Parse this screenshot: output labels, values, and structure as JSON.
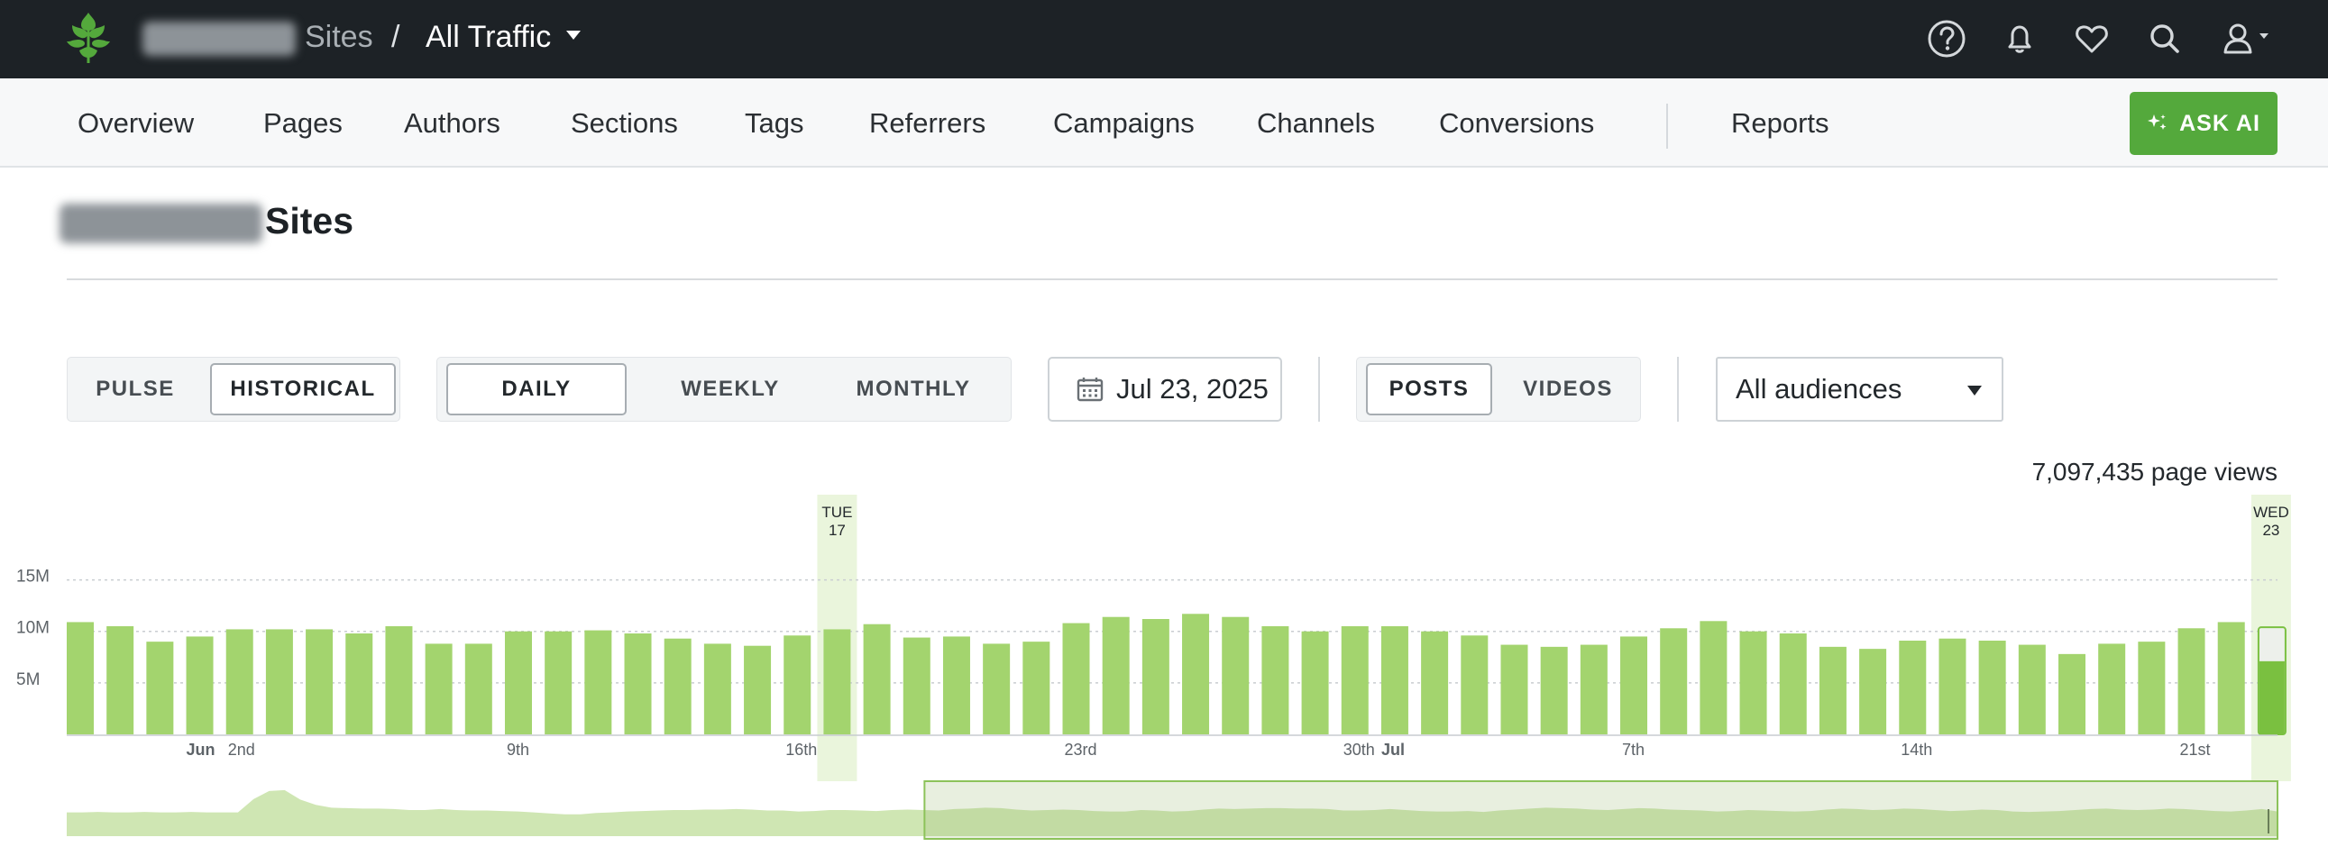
{
  "topbar": {
    "crumb_sites": "Sites",
    "crumb_separator": "/",
    "crumb_traffic": "All Traffic",
    "icons": [
      "help-icon",
      "bell-icon",
      "heart-icon",
      "search-icon",
      "user-icon"
    ]
  },
  "nav": {
    "items": [
      "Overview",
      "Pages",
      "Authors",
      "Sections",
      "Tags",
      "Referrers",
      "Campaigns",
      "Channels",
      "Conversions"
    ],
    "reports": "Reports",
    "ask_ai": "ASK AI"
  },
  "page": {
    "title": "Sites"
  },
  "controls": {
    "mode": {
      "options": [
        "PULSE",
        "HISTORICAL"
      ],
      "selected": "HISTORICAL"
    },
    "interval": {
      "options": [
        "DAILY",
        "WEEKLY",
        "MONTHLY"
      ],
      "selected": "DAILY"
    },
    "date": "Jul 23, 2025",
    "content": {
      "options": [
        "POSTS",
        "VIDEOS"
      ],
      "selected": "POSTS"
    },
    "audience": "All audiences"
  },
  "summary": {
    "page_views": "7,097,435 page views"
  },
  "colors": {
    "bar": "#a3d46e",
    "bar_current": "#7ac040",
    "highlight": "#eaf5dc",
    "accent": "#54a93c"
  },
  "chart_data": {
    "type": "bar",
    "yticks": [
      "15M",
      "10M",
      "5M"
    ],
    "ylim": [
      0,
      17500000
    ],
    "start_date": "2025-05-29",
    "end_date": "2025-07-23",
    "values": [
      10900000,
      10500000,
      9000000,
      9500000,
      10200000,
      10200000,
      10200000,
      9800000,
      10500000,
      8800000,
      8800000,
      10000000,
      10000000,
      10100000,
      9800000,
      9300000,
      8800000,
      8600000,
      9600000,
      10200000,
      10700000,
      9400000,
      9500000,
      8800000,
      9000000,
      10800000,
      11400000,
      11200000,
      11700000,
      11400000,
      10500000,
      10000000,
      10500000,
      10500000,
      10000000,
      9600000,
      8700000,
      8500000,
      8700000,
      9500000,
      10300000,
      11000000,
      10000000,
      9800000,
      8500000,
      8300000,
      9100000,
      9300000,
      9100000,
      8700000,
      7800000,
      8800000,
      9000000,
      10300000,
      10900000,
      7100000
    ],
    "current_day_partial": true,
    "current_day_projected": 10400000,
    "x_tick_labels": [
      {
        "label": "Jun",
        "index": 3,
        "month": true
      },
      {
        "label": "2nd",
        "index": 4
      },
      {
        "label": "9th",
        "index": 11
      },
      {
        "label": "16th",
        "index": 18
      },
      {
        "label": "23rd",
        "index": 25
      },
      {
        "label": "30th",
        "index": 32
      },
      {
        "label": "Jul",
        "index": 33,
        "month": true
      },
      {
        "label": "7th",
        "index": 39
      },
      {
        "label": "14th",
        "index": 46
      },
      {
        "label": "21st",
        "index": 53
      }
    ],
    "highlights": [
      {
        "day": "TUE",
        "date": "17",
        "index": 19
      },
      {
        "day": "WED",
        "date": "23",
        "index": 55
      }
    ],
    "overview_values": [
      5.0,
      5.0,
      5.1,
      5.0,
      5.0,
      5.1,
      5.0,
      5.0,
      5.1,
      5.0,
      5.0,
      5.0,
      7.8,
      9.5,
      9.7,
      7.7,
      6.6,
      6.0,
      5.9,
      5.8,
      5.8,
      5.7,
      5.5,
      5.5,
      5.7,
      5.5,
      5.4,
      5.4,
      5.3,
      5.2,
      5.0,
      4.8,
      4.6,
      4.6,
      4.9,
      5.0,
      5.2,
      5.3,
      5.4,
      5.5,
      5.5,
      5.6,
      5.6,
      5.7,
      5.6,
      5.4,
      5.4,
      5.2,
      5.3,
      5.5,
      5.5,
      5.4,
      5.3,
      5.5,
      5.6,
      5.5,
      5.4,
      5.7,
      5.8,
      6.0,
      5.9,
      5.6,
      5.4,
      5.5,
      5.6,
      5.5,
      5.3,
      5.2,
      5.2,
      5.5,
      5.4,
      5.2,
      5.3,
      5.6,
      5.8,
      5.7,
      5.8,
      5.9,
      5.9,
      5.8,
      5.8,
      5.7,
      5.4,
      5.4,
      5.5,
      5.7,
      5.5,
      5.3,
      5.2,
      5.2,
      5.3,
      5.1,
      5.4,
      5.6,
      5.8,
      6.0,
      5.9,
      5.8,
      5.6,
      5.5,
      5.7,
      5.9,
      5.8,
      5.6,
      5.5,
      5.4,
      5.2,
      5.3,
      5.5,
      5.4,
      5.3,
      5.2,
      5.3,
      5.6,
      5.8,
      5.7,
      5.5,
      5.6,
      5.8,
      5.7,
      5.5,
      5.3,
      5.4,
      5.6,
      5.5,
      5.2,
      5.1,
      5.2,
      5.3,
      5.5,
      5.7,
      5.8,
      5.6,
      5.5,
      5.6,
      5.8,
      5.7,
      5.5,
      5.3,
      5.2,
      5.4,
      5.7,
      5.2
    ],
    "overview_window": [
      0.388,
      1.0
    ]
  }
}
